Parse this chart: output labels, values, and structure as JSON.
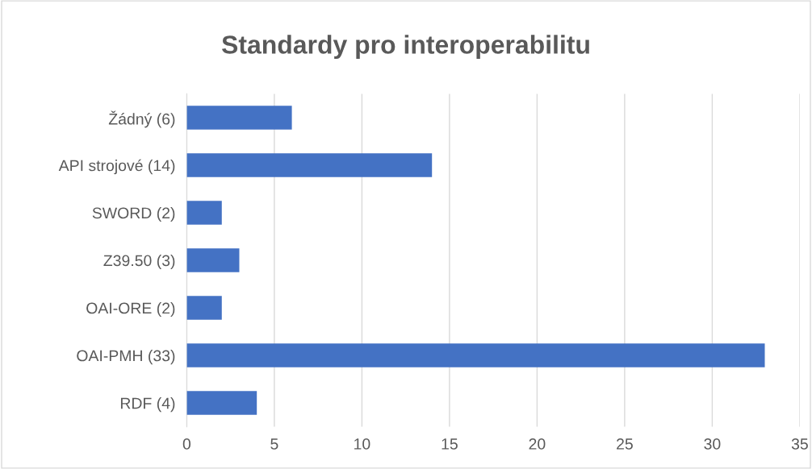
{
  "chart_data": {
    "type": "bar",
    "orientation": "horizontal",
    "title": "Standardy pro interoperabilitu",
    "categories": [
      "Žádný (6)",
      "API strojové (14)",
      "SWORD (2)",
      "Z39.50 (3)",
      "OAI-ORE (2)",
      "OAI-PMH (33)",
      "RDF (4)"
    ],
    "values": [
      6,
      14,
      2,
      3,
      2,
      33,
      4
    ],
    "color": "#4472c4",
    "xlim": [
      0,
      35
    ],
    "xticks": [
      0,
      5,
      10,
      15,
      20,
      25,
      30,
      35
    ],
    "grid": "x"
  }
}
